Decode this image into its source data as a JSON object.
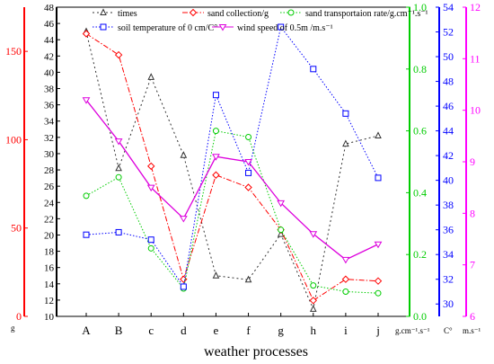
{
  "chart_data": {
    "type": "line",
    "xlabel": "weather processes",
    "categories": [
      "A",
      "B",
      "c",
      "d",
      "e",
      "f",
      "g",
      "h",
      "i",
      "j"
    ],
    "axes": [
      {
        "id": "sand",
        "unit": "g",
        "color": "#ff0000",
        "ylim": [
          0,
          175
        ],
        "ticks": [
          0,
          50,
          100,
          150
        ]
      },
      {
        "id": "times",
        "unit": "",
        "color": "#000000",
        "ylim": [
          10,
          48
        ],
        "ticks": [
          10,
          12,
          14,
          16,
          18,
          20,
          22,
          24,
          26,
          28,
          30,
          32,
          34,
          36,
          38,
          40,
          42,
          44,
          46,
          48
        ]
      },
      {
        "id": "rate",
        "unit": "g.cm⁻¹.s⁻¹",
        "color": "#00cc00",
        "ylim": [
          0,
          1.0
        ],
        "ticks": [
          0.0,
          0.2,
          0.4,
          0.6,
          0.8,
          1.0
        ]
      },
      {
        "id": "soil",
        "unit": "C°",
        "color": "#0000ff",
        "ylim": [
          29,
          54
        ],
        "ticks": [
          30,
          32,
          34,
          36,
          38,
          40,
          42,
          44,
          46,
          48,
          50,
          52,
          54
        ]
      },
      {
        "id": "wind",
        "unit": "m.s⁻¹",
        "color": "#ff00ff",
        "ylim": [
          6,
          12
        ],
        "ticks": [
          6,
          7,
          8,
          9,
          10,
          11,
          12
        ]
      }
    ],
    "series": [
      {
        "name": "times",
        "axis": "times",
        "color": "#333333",
        "marker": "triangle",
        "dash": "2,3",
        "values": [
          45,
          28.2,
          39.4,
          29.8,
          15,
          14.5,
          20.1,
          10.9,
          31.2,
          32.2
        ]
      },
      {
        "name": "sand collection/g",
        "axis": "sand",
        "color": "#ff0000",
        "marker": "diamond",
        "dash": "6,2,1.5,2",
        "values": [
          160,
          148,
          85,
          21,
          80,
          73,
          49,
          9,
          21,
          20
        ]
      },
      {
        "name": "sand transportaion rate/g.cm⁻¹.s⁻¹",
        "axis": "rate",
        "color": "#00cc00",
        "marker": "circle",
        "dash": "1.5,2",
        "values": [
          0.39,
          0.45,
          0.22,
          0.09,
          0.6,
          0.58,
          0.28,
          0.1,
          0.08,
          0.075
        ]
      },
      {
        "name": "soil temperature of 0 cm/C°",
        "axis": "soil",
        "color": "#0000ff",
        "marker": "square",
        "dash": "1.5,2",
        "values": [
          35.6,
          35.8,
          35.2,
          31.4,
          46.9,
          40.6,
          52.4,
          49,
          45.4,
          40.2
        ]
      },
      {
        "name": "wind speed of 0.5m /m.s⁻¹",
        "axis": "wind",
        "color": "#dd00dd",
        "marker": "triangle-down",
        "dash": "",
        "values": [
          10.2,
          9.4,
          8.5,
          7.9,
          9.1,
          9.0,
          8.2,
          7.6,
          7.1,
          7.4
        ]
      }
    ]
  }
}
